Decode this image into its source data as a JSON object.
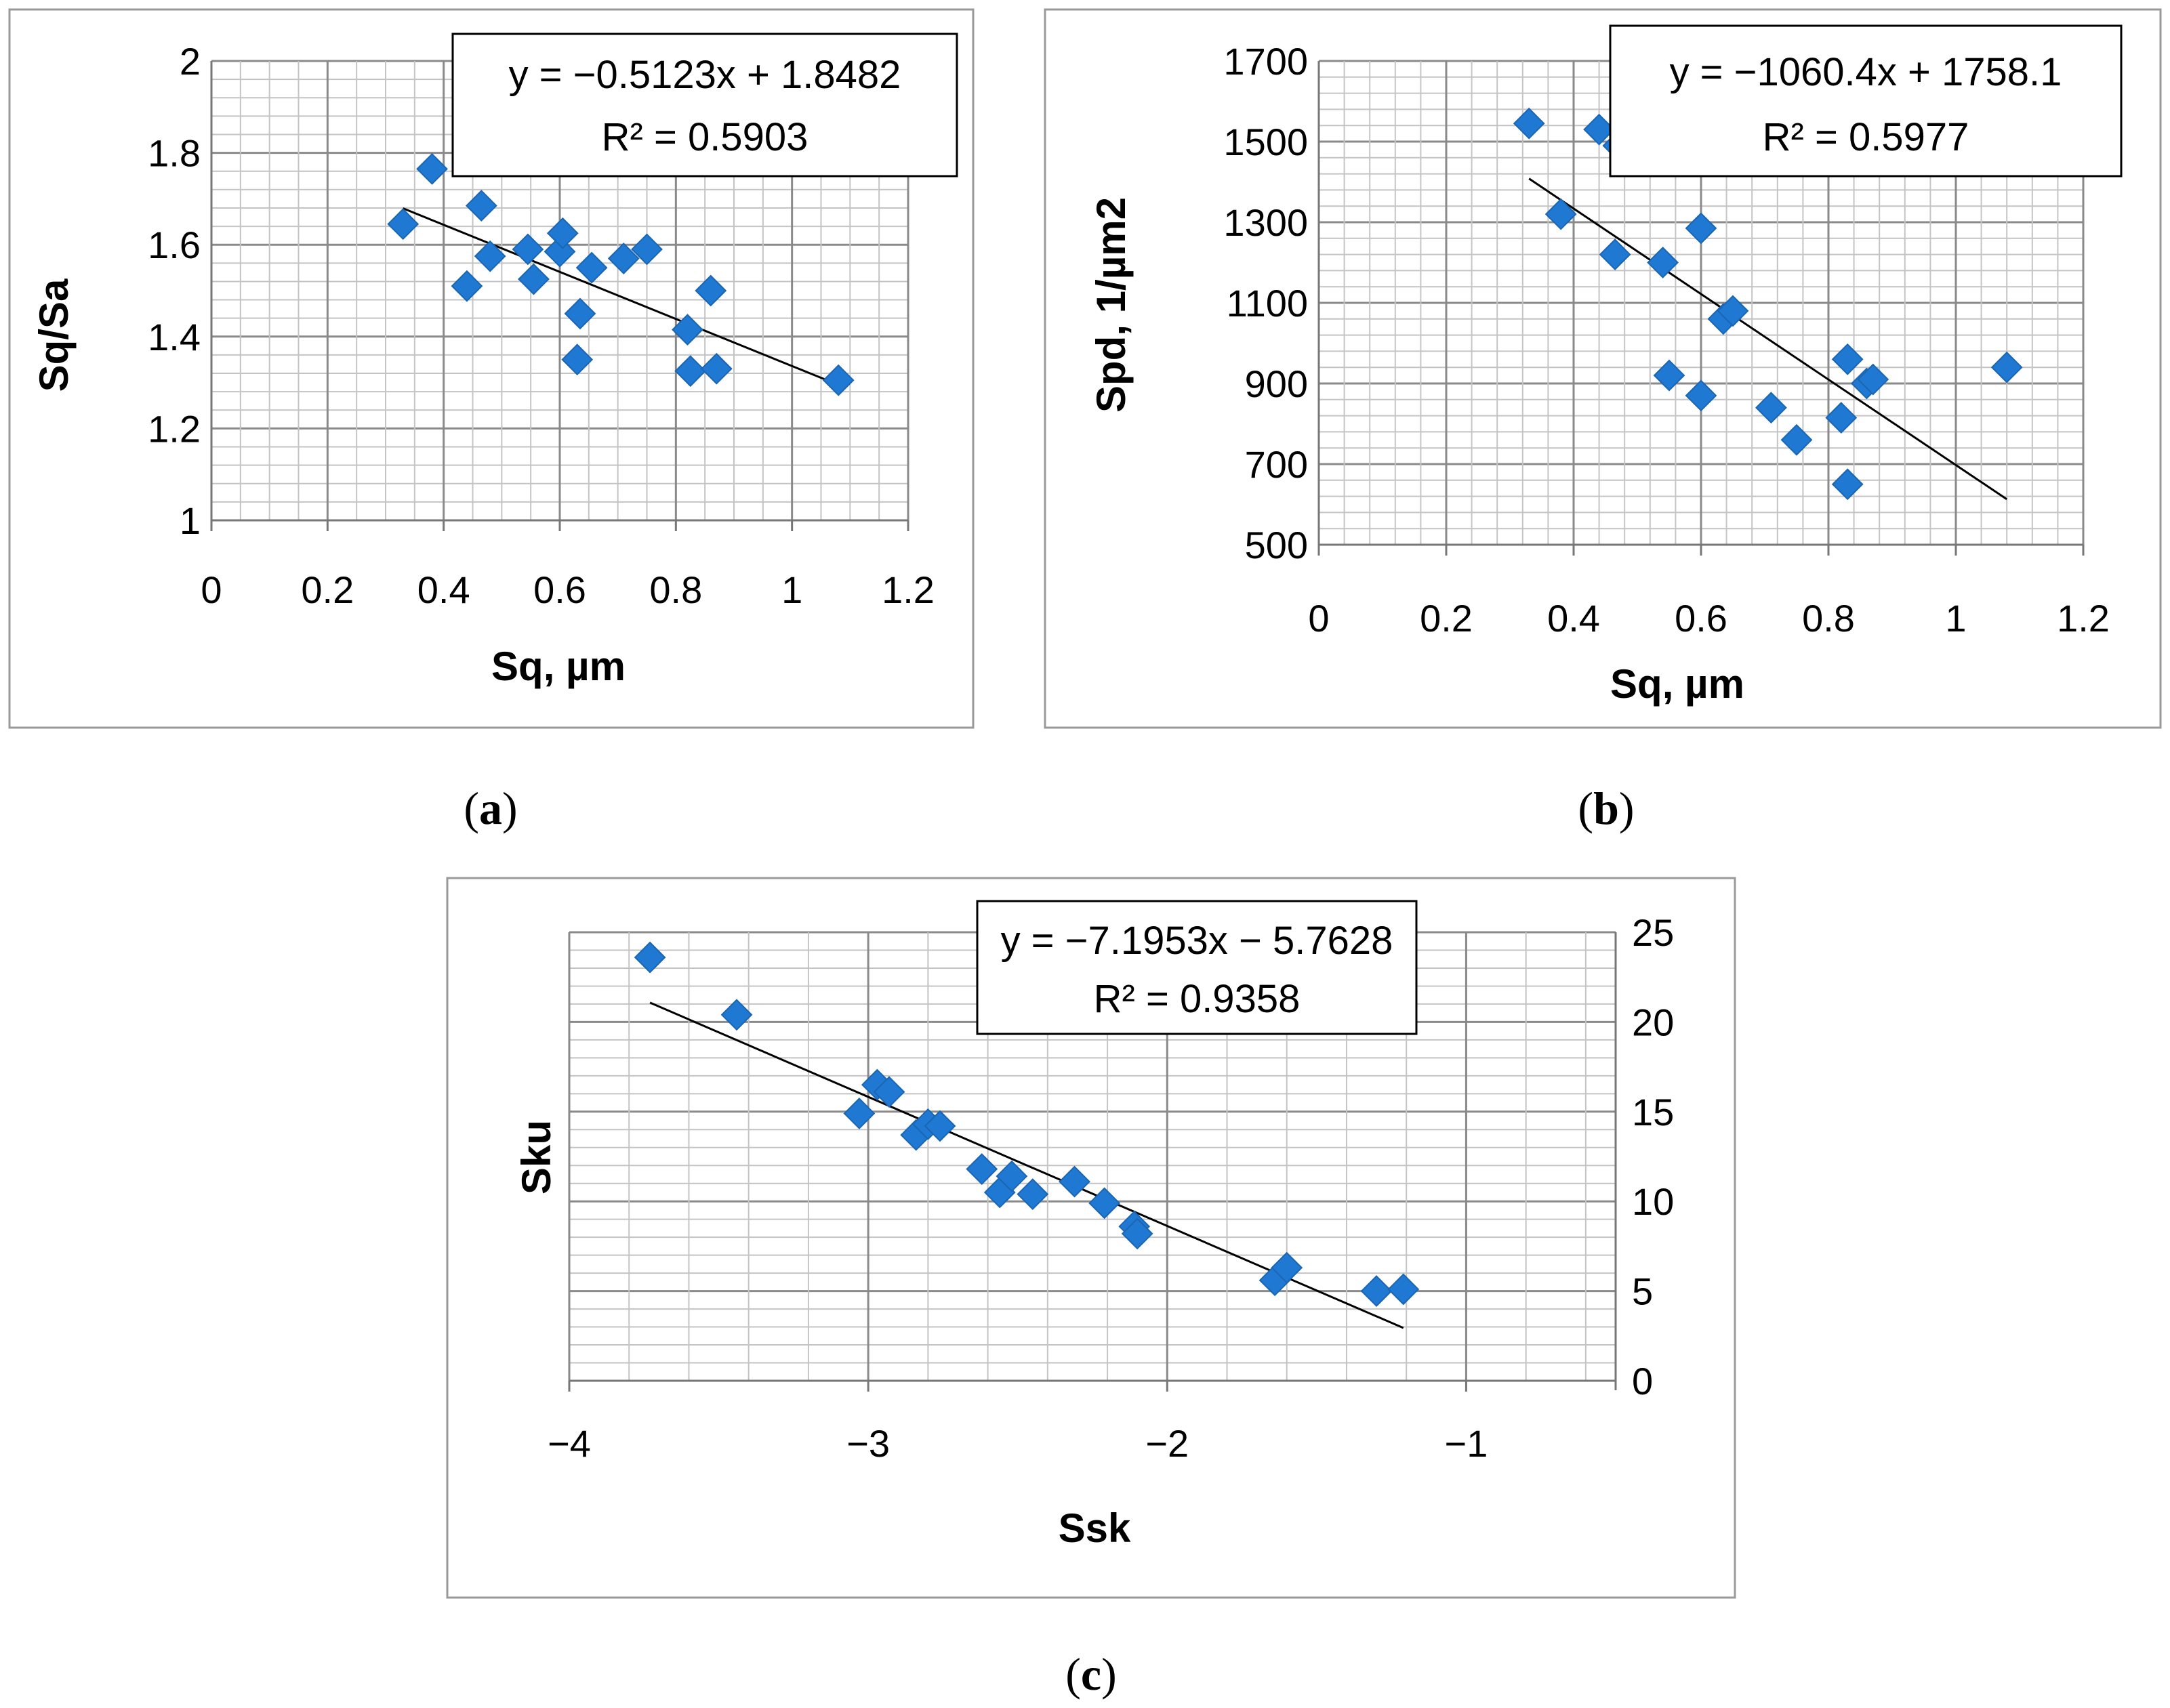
{
  "chart_data": [
    {
      "id": "a",
      "caption": "a",
      "type": "scatter",
      "xlabel": "Sq, µm",
      "ylabel": "Sq/Sa",
      "xlim": [
        0,
        1.2
      ],
      "ylim": [
        1,
        2
      ],
      "x_ticks": [
        "0",
        "0.2",
        "0.4",
        "0.6",
        "0.8",
        "1",
        "1.2"
      ],
      "y_ticks": [
        "1",
        "1.2",
        "1.4",
        "1.6",
        "1.8",
        "2"
      ],
      "y_axis_side": "left",
      "grid": true,
      "marker_color": "#1f78d1",
      "trendline": {
        "slope": -0.5123,
        "intercept": 1.8482,
        "x_range": [
          0.33,
          1.08
        ]
      },
      "equation": "y = −0.5123x + 1.8482",
      "r2": "R² = 0.5903",
      "points": [
        [
          0.33,
          1.645
        ],
        [
          0.38,
          1.765
        ],
        [
          0.44,
          1.51
        ],
        [
          0.465,
          1.685
        ],
        [
          0.48,
          1.575
        ],
        [
          0.545,
          1.59
        ],
        [
          0.555,
          1.525
        ],
        [
          0.6,
          1.585
        ],
        [
          0.605,
          1.625
        ],
        [
          0.635,
          1.45
        ],
        [
          0.63,
          1.35
        ],
        [
          0.655,
          1.55
        ],
        [
          0.71,
          1.57
        ],
        [
          0.75,
          1.59
        ],
        [
          0.82,
          1.415
        ],
        [
          0.825,
          1.325
        ],
        [
          0.86,
          1.5
        ],
        [
          0.87,
          1.33
        ],
        [
          1.08,
          1.305
        ]
      ]
    },
    {
      "id": "b",
      "caption": "b",
      "type": "scatter",
      "xlabel": "Sq, µm",
      "ylabel": "Spd, 1/µm2",
      "xlim": [
        0,
        1.2
      ],
      "ylim": [
        500,
        1700
      ],
      "x_ticks": [
        "0",
        "0.2",
        "0.4",
        "0.6",
        "0.8",
        "1",
        "1.2"
      ],
      "y_ticks": [
        "500",
        "700",
        "900",
        "1100",
        "1300",
        "1500",
        "1700"
      ],
      "y_axis_side": "left",
      "grid": true,
      "marker_color": "#1f78d1",
      "trendline": {
        "slope": -1060.4,
        "intercept": 1758.1,
        "x_range": [
          0.33,
          1.08
        ]
      },
      "equation": "y = −1060.4x + 1758.1",
      "r2": "R² = 0.5977",
      "points": [
        [
          0.33,
          1545
        ],
        [
          0.38,
          1320
        ],
        [
          0.44,
          1530
        ],
        [
          0.47,
          1490
        ],
        [
          0.465,
          1220
        ],
        [
          0.54,
          1200
        ],
        [
          0.55,
          920
        ],
        [
          0.6,
          1285
        ],
        [
          0.6,
          870
        ],
        [
          0.635,
          1060
        ],
        [
          0.65,
          1080
        ],
        [
          0.71,
          840
        ],
        [
          0.75,
          760
        ],
        [
          0.82,
          815
        ],
        [
          0.83,
          960
        ],
        [
          0.83,
          650
        ],
        [
          0.86,
          900
        ],
        [
          0.87,
          910
        ],
        [
          1.08,
          940
        ]
      ]
    },
    {
      "id": "c",
      "caption": "c",
      "type": "scatter",
      "xlabel": "Ssk",
      "ylabel": "Sku",
      "xlim": [
        -4,
        -0.5
      ],
      "ylim": [
        0,
        25
      ],
      "x_ticks": [
        "−4",
        "−3",
        "−2",
        "−1"
      ],
      "x_tick_values": [
        -4,
        -3,
        -2,
        -1
      ],
      "y_ticks": [
        "0",
        "5",
        "10",
        "15",
        "20",
        "25"
      ],
      "y_axis_side": "right",
      "grid": true,
      "marker_color": "#1f78d1",
      "trendline": {
        "slope": -7.1953,
        "intercept": -5.7628,
        "x_range": [
          -3.73,
          -1.21
        ]
      },
      "equation": "y = −7.1953x − 5.7628",
      "r2": "R² = 0.9358",
      "points": [
        [
          -3.73,
          23.6
        ],
        [
          -3.44,
          20.4
        ],
        [
          -3.03,
          14.9
        ],
        [
          -2.97,
          16.5
        ],
        [
          -2.93,
          16.1
        ],
        [
          -2.84,
          13.7
        ],
        [
          -2.8,
          14.3
        ],
        [
          -2.76,
          14.2
        ],
        [
          -2.62,
          11.8
        ],
        [
          -2.56,
          10.5
        ],
        [
          -2.52,
          11.4
        ],
        [
          -2.45,
          10.4
        ],
        [
          -2.31,
          11.1
        ],
        [
          -2.21,
          9.9
        ],
        [
          -2.11,
          8.6
        ],
        [
          -2.1,
          8.2
        ],
        [
          -1.64,
          5.6
        ],
        [
          -1.6,
          6.3
        ],
        [
          -1.3,
          5.0
        ],
        [
          -1.21,
          5.1
        ]
      ]
    }
  ]
}
